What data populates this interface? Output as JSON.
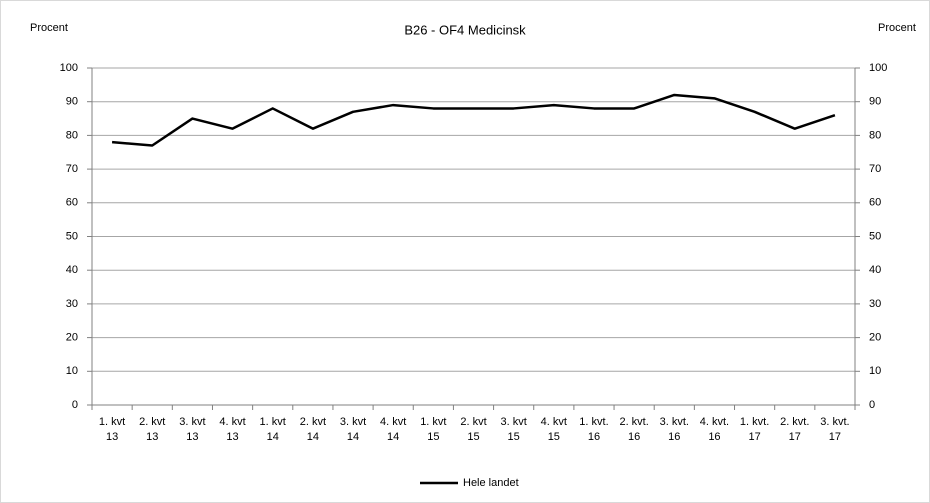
{
  "chart_data": {
    "type": "line",
    "title": "B26 - OF4 Medicinsk",
    "y_label": "Procent",
    "y2_label": "Procent",
    "categories": [
      [
        "1. kvt",
        "13"
      ],
      [
        "2. kvt",
        "13"
      ],
      [
        "3. kvt",
        "13"
      ],
      [
        "4. kvt",
        "13"
      ],
      [
        "1. kvt",
        "14"
      ],
      [
        "2. kvt",
        "14"
      ],
      [
        "3. kvt",
        "14"
      ],
      [
        "4. kvt",
        "14"
      ],
      [
        "1. kvt",
        "15"
      ],
      [
        "2. kvt",
        "15"
      ],
      [
        "3. kvt",
        "15"
      ],
      [
        "4. kvt",
        "15"
      ],
      [
        "1. kvt.",
        "16"
      ],
      [
        "2. kvt.",
        "16"
      ],
      [
        "3. kvt.",
        "16"
      ],
      [
        "4. kvt.",
        "16"
      ],
      [
        "1. kvt.",
        "17"
      ],
      [
        "2. kvt.",
        "17"
      ],
      [
        "3. kvt.",
        "17"
      ]
    ],
    "series": [
      {
        "name": "Hele landet",
        "color": "#000000",
        "values": [
          78,
          77,
          85,
          82,
          88,
          82,
          87,
          89,
          88,
          88,
          88,
          89,
          88,
          88,
          92,
          91,
          87,
          82,
          86
        ]
      }
    ],
    "ylim": [
      0,
      100
    ],
    "yticks": [
      0,
      10,
      20,
      30,
      40,
      50,
      60,
      70,
      80,
      90,
      100
    ],
    "y2lim": [
      0,
      100
    ],
    "y2ticks": [
      0,
      10,
      20,
      30,
      40,
      50,
      60,
      70,
      80,
      90,
      100
    ],
    "grid": true,
    "legend": "bottom"
  }
}
